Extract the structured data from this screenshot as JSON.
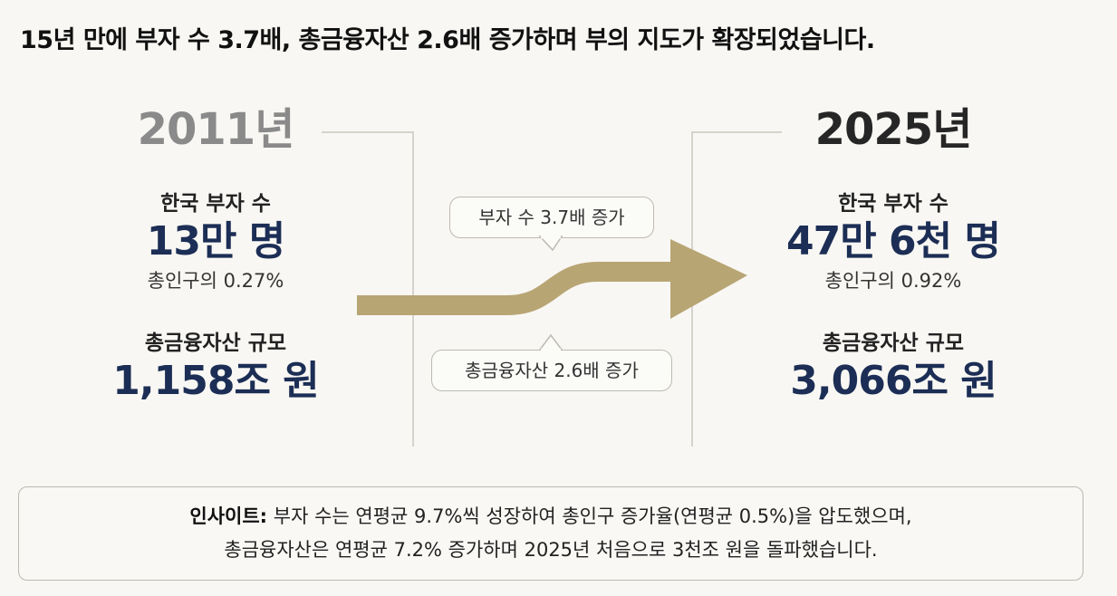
{
  "headline": "15년 만에 부자 수 3.7배, 총금융자산 2.6배 증가하며 부의 지도가 확장되었습니다.",
  "left": {
    "year": "2011년",
    "rich_label": "한국 부자 수",
    "rich_value": "13만 명",
    "rich_share": "총인구의 0.27%",
    "assets_label": "총금융자산 규모",
    "assets_value": "1,158조 원"
  },
  "right": {
    "year": "2025년",
    "rich_label": "한국 부자 수",
    "rich_value": "47만 6천 명",
    "rich_share": "총인구의 0.92%",
    "assets_label": "총금융자산 규모",
    "assets_value": "3,066조 원"
  },
  "callouts": {
    "rich_growth": "부자 수 3.7배 증가",
    "assets_growth": "총금융자산 2.6배 증가"
  },
  "insight": {
    "label": "인사이트:",
    "line1": "부자 수는 연평균 9.7%씩 성장하여 총인구 증가율(연평균 0.5%)을 압도했으며,",
    "line2": "총금융자산은 연평균 7.2% 증가하며 2025년 처음으로 3천조 원을 돌파했습니다."
  },
  "colors": {
    "arrow": "#b8a574",
    "value_navy": "#1c2e55"
  }
}
